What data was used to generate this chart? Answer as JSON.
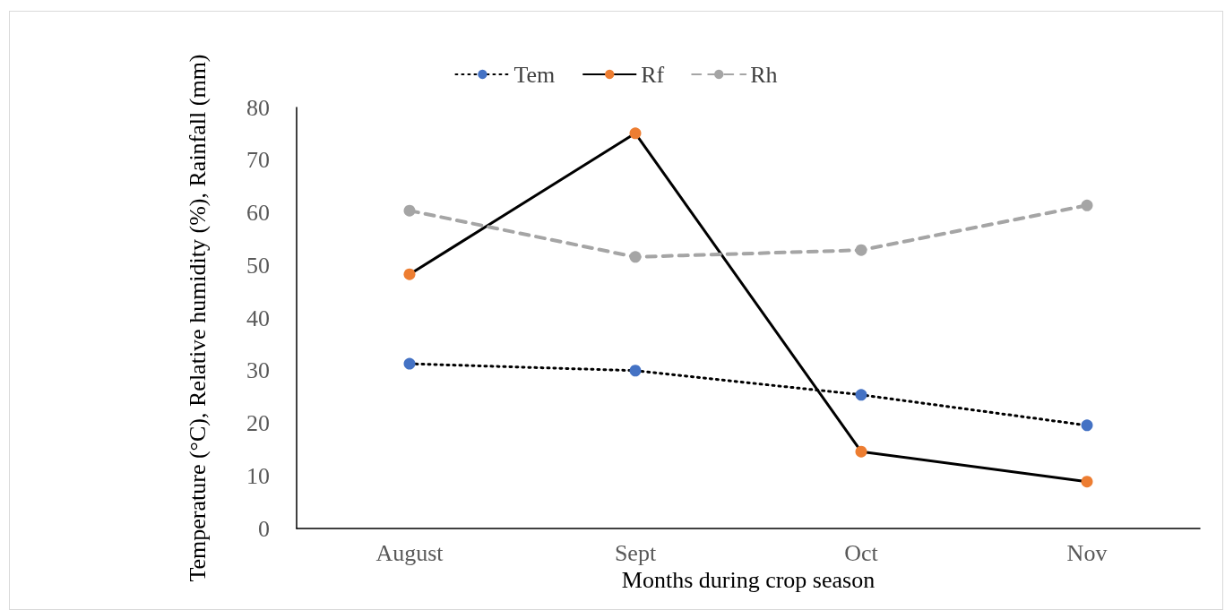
{
  "chart_data": {
    "type": "line",
    "xlabel": "Months during crop season",
    "ylabel": "Temperature (°C), Relative humidity (%), Rainfall (mm)",
    "categories": [
      "August",
      "Sept",
      "Oct",
      "Nov"
    ],
    "series": [
      {
        "name": "Tem",
        "color": "#000000",
        "colors": [
          "#4472c4",
          "#4472c4",
          "#4472c4",
          "#4472c4"
        ],
        "line_style": "dotted",
        "values": [
          31.3,
          30.0,
          25.4,
          19.6
        ]
      },
      {
        "name": "Rf",
        "color": "#000000",
        "colors": [
          "#ed7d31",
          "#ed7d31",
          "#ed7d31",
          "#ed7d31"
        ],
        "line_style": "solid",
        "values": [
          48.3,
          75.1,
          14.6,
          8.9
        ]
      },
      {
        "name": "Rh",
        "color": "#a5a5a5",
        "colors": [
          "#a5a5a5",
          "#a5a5a5",
          "#a5a5a5",
          "#a5a5a5"
        ],
        "line_style": "dashed",
        "values": [
          60.4,
          51.6,
          52.9,
          61.4
        ]
      }
    ],
    "ylim": [
      0,
      80
    ],
    "yticks": [
      0,
      10,
      20,
      30,
      40,
      50,
      60,
      70,
      80
    ],
    "grid": false,
    "legend": "top",
    "marker": "circle"
  }
}
